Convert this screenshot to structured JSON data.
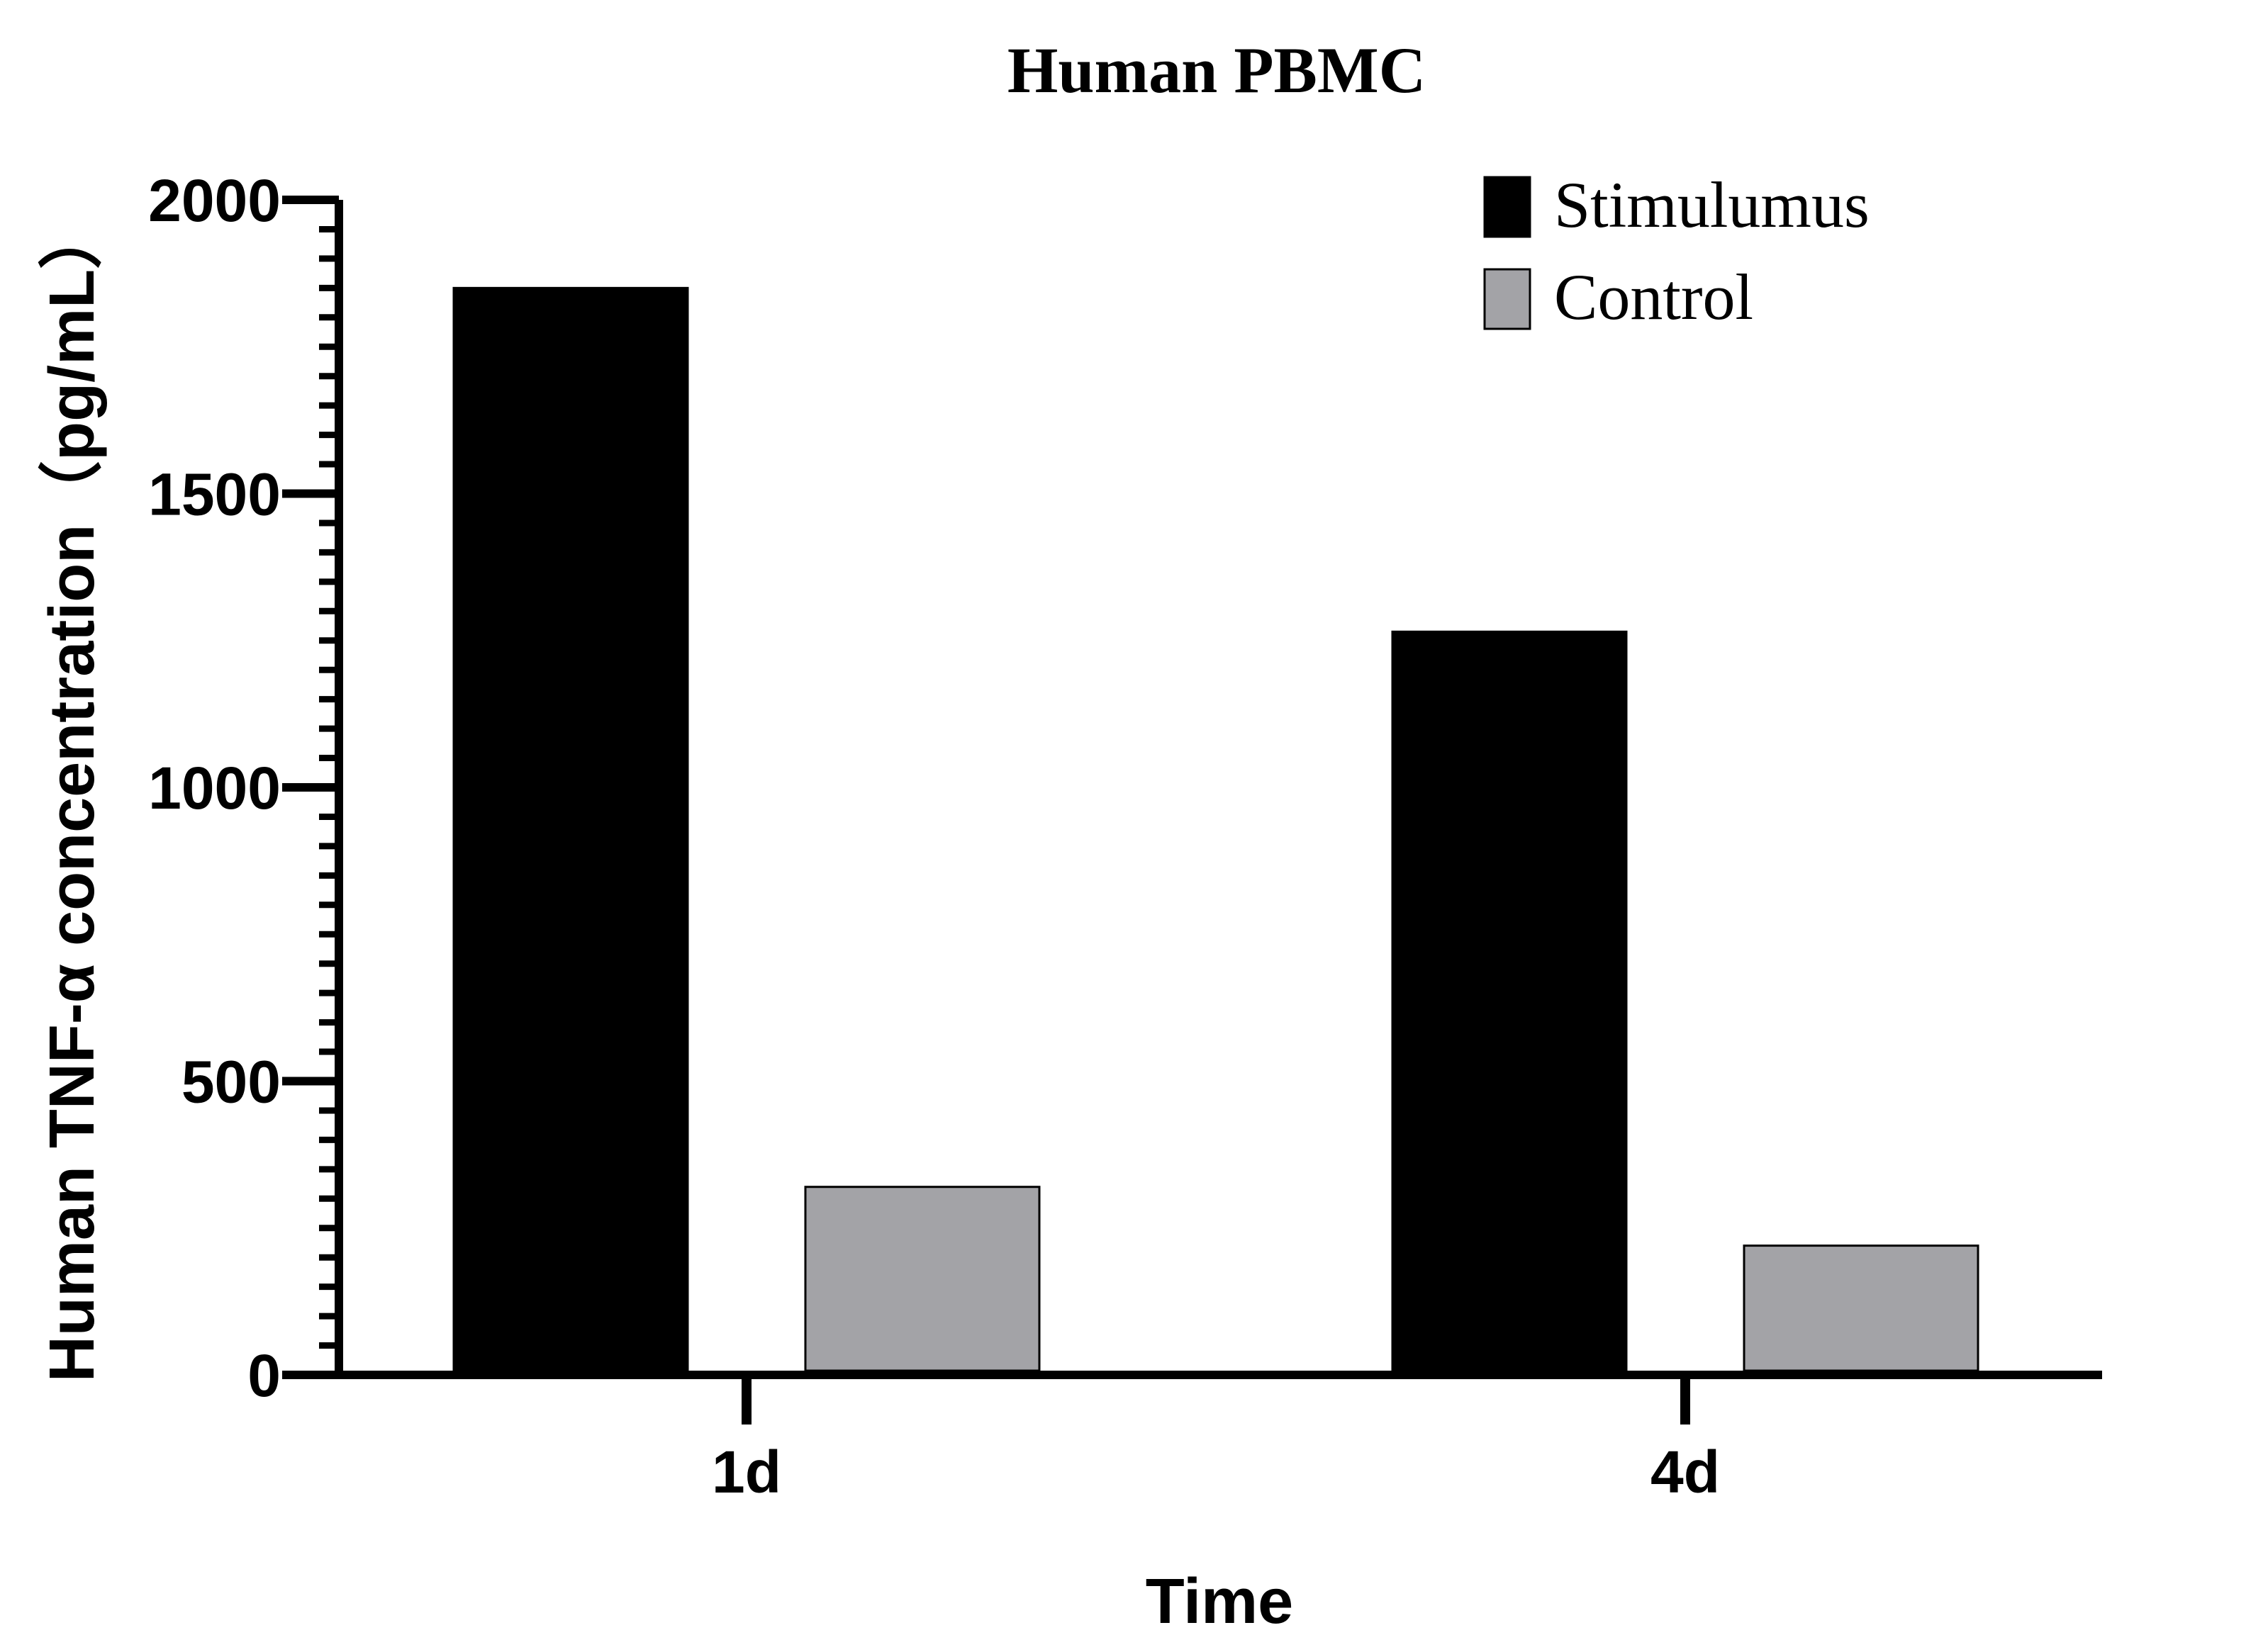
{
  "chart_data": {
    "type": "bar",
    "title": "Human PBMC",
    "xlabel": "Time",
    "ylabel": "Human TNF-α concentration（pg/mL）",
    "categories": [
      "1d",
      "4d"
    ],
    "series": [
      {
        "name": "Stimulumus",
        "values": [
          1850,
          1265
        ],
        "color": "#000000"
      },
      {
        "name": "Control",
        "values": [
          320,
          220
        ],
        "color": "#a3a3a7"
      }
    ],
    "ylim": [
      0,
      2000
    ],
    "yticks": [
      0,
      500,
      1000,
      1500,
      2000
    ],
    "ytick_labels": [
      "0",
      "500",
      "1000",
      "1500",
      "2000"
    ],
    "y_minor_step": 50,
    "grid": false,
    "legend_position": "top-right"
  }
}
